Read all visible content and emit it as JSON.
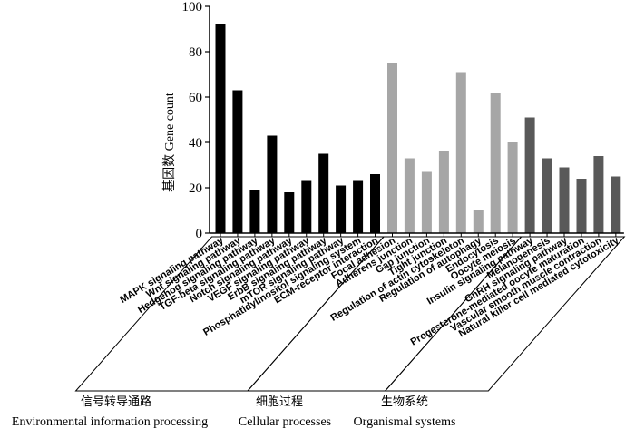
{
  "chart_data": {
    "type": "bar",
    "ylabel": "基因数  Gene count",
    "ylim": [
      0,
      100
    ],
    "yticks": [
      0,
      20,
      40,
      60,
      80,
      100
    ],
    "categories": [
      "MAPK signaling pathway",
      "Wnt signaling pathway",
      "Hedgehog signaling pathway",
      "TGF-beta signaling pathway",
      "Notch signaling pathway",
      "VEGF signaling pathway",
      "ErbB signaling pathway",
      "mTOR signaling pathway",
      "Phosphatidylinositol signaling system",
      "ECM-receptor interaction",
      "Focal adhesion",
      "Adherens junction",
      "Gap junction",
      "Tight junction",
      "Regulation of actin cytoskeleton",
      "Regulation of autophagy",
      "Endocytosis",
      "Oocyte meiosis",
      "Insulin signaling pathway",
      "Melanogenesis",
      "GnRH signaling pathway",
      "Progesterone-mediated oocyte maturation",
      "Vascular smooth muscle contraction",
      "Natural killer cell mediated cytotoxicity"
    ],
    "values": [
      92,
      63,
      19,
      43,
      18,
      23,
      35,
      21,
      23,
      26,
      75,
      33,
      27,
      36,
      71,
      10,
      62,
      40,
      51,
      33,
      29,
      24,
      34,
      25
    ],
    "group_index": [
      0,
      0,
      0,
      0,
      0,
      0,
      0,
      0,
      0,
      0,
      1,
      1,
      1,
      1,
      1,
      1,
      1,
      1,
      2,
      2,
      2,
      2,
      2,
      2
    ],
    "groups": [
      {
        "name_cn": "信号转导通路",
        "name_en": "Environmental information processing",
        "color": "#000000"
      },
      {
        "name_cn": "细胞过程",
        "name_en": "Cellular processes",
        "color": "#a6a6a6"
      },
      {
        "name_cn": "生物系统",
        "name_en": "Organismal systems",
        "color": "#595959"
      }
    ]
  }
}
